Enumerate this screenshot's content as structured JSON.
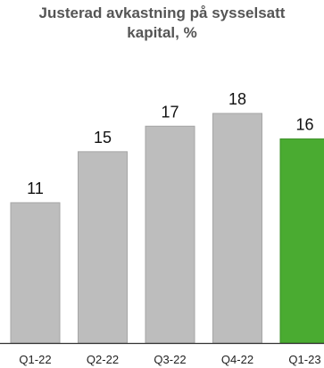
{
  "chart_data": {
    "type": "bar",
    "title": "Justerad avkastning på sysselsatt kapital, %",
    "title_lines": [
      "Justerad avkastning på sysselsatt",
      "kapital, %"
    ],
    "categories": [
      "Q1-22",
      "Q2-22",
      "Q3-22",
      "Q4-22",
      "Q1-23"
    ],
    "values": [
      11,
      15,
      17,
      18,
      16
    ],
    "value_labels": [
      "11",
      "15",
      "17",
      "18",
      "16"
    ],
    "xlabel": "",
    "ylabel": "",
    "ylim": [
      0,
      20
    ],
    "grid": false,
    "legend": "none",
    "colors": {
      "default_bar": "#bdbdbd",
      "default_bar_edge": "#a5a5a5",
      "highlight_bar": "#4aab31",
      "highlight_bar_edge": "#3a8f25",
      "highlight_index": 4,
      "axis": "#333333"
    }
  }
}
